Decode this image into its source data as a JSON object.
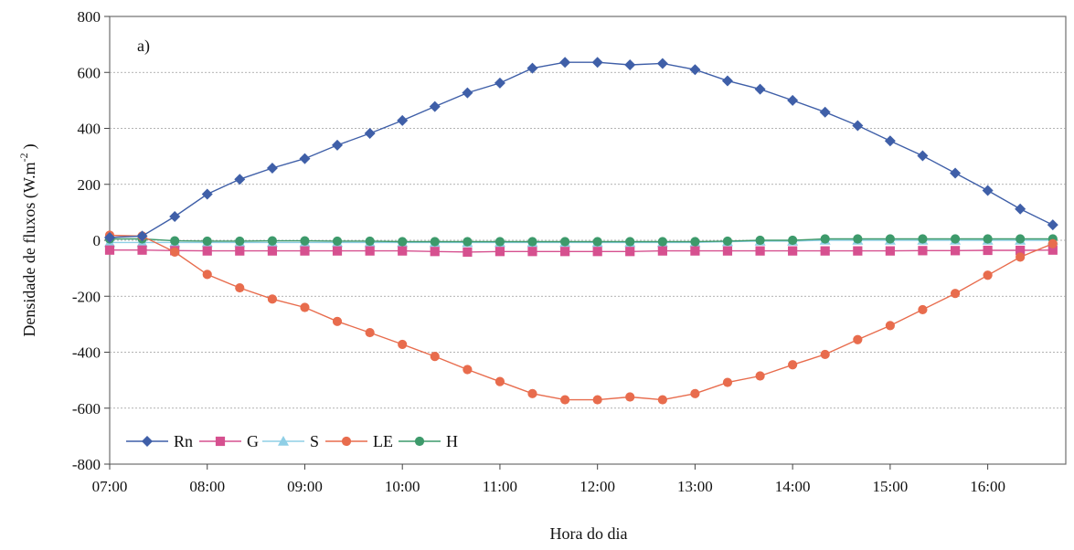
{
  "chart_data": {
    "type": "line",
    "panel_label": "a)",
    "xlabel": "Hora do dia",
    "ylabel": "Densidade de fluxos (W.m",
    "ylabel_sup": "-2",
    "ylabel_close": ")",
    "ylim": [
      -800,
      800
    ],
    "yticks": [
      800,
      600,
      400,
      200,
      0,
      -200,
      -400,
      -600,
      -800
    ],
    "xlim": [
      7.0,
      16.8
    ],
    "xticks": [
      {
        "v": 7,
        "label": "07:00"
      },
      {
        "v": 8,
        "label": "08:00"
      },
      {
        "v": 9,
        "label": "09:00"
      },
      {
        "v": 10,
        "label": "10:00"
      },
      {
        "v": 11,
        "label": "11:00"
      },
      {
        "v": 12,
        "label": "12:00"
      },
      {
        "v": 13,
        "label": "13:00"
      },
      {
        "v": 14,
        "label": "14:00"
      },
      {
        "v": 15,
        "label": "15:00"
      },
      {
        "v": 16,
        "label": "16:00"
      }
    ],
    "grid": "horizontal",
    "legend_position": "bottom-left",
    "x": [
      7.0,
      7.333,
      7.667,
      8.0,
      8.333,
      8.667,
      9.0,
      9.333,
      9.667,
      10.0,
      10.333,
      10.667,
      11.0,
      11.333,
      11.667,
      12.0,
      12.333,
      12.667,
      13.0,
      13.333,
      13.667,
      14.0,
      14.333,
      14.667,
      15.0,
      15.333,
      15.667,
      16.0,
      16.333,
      16.667
    ],
    "series": [
      {
        "name": "Rn",
        "color": "#3f5fa8",
        "marker": "diamond",
        "values": [
          10,
          15,
          85,
          165,
          218,
          258,
          292,
          340,
          382,
          428,
          478,
          527,
          562,
          615,
          636,
          636,
          627,
          632,
          610,
          570,
          540,
          500,
          458,
          410,
          355,
          302,
          240,
          178,
          112,
          55
        ]
      },
      {
        "name": "G",
        "color": "#d6508f",
        "marker": "square",
        "values": [
          -35,
          -35,
          -37,
          -38,
          -38,
          -38,
          -38,
          -38,
          -38,
          -38,
          -40,
          -42,
          -40,
          -40,
          -40,
          -40,
          -40,
          -38,
          -38,
          -38,
          -38,
          -38,
          -38,
          -38,
          -38,
          -37,
          -37,
          -36,
          -36,
          -35
        ]
      },
      {
        "name": "S",
        "color": "#8fcfe6",
        "marker": "triangle",
        "values": [
          -8,
          -8,
          -8,
          -8,
          -8,
          -8,
          -8,
          -8,
          -8,
          -8,
          -8,
          -8,
          -8,
          -8,
          -8,
          -8,
          -8,
          -8,
          -8,
          -5,
          -3,
          -3,
          0,
          0,
          0,
          0,
          0,
          0,
          0,
          0
        ]
      },
      {
        "name": "LE",
        "color": "#e86c4d",
        "marker": "circle",
        "values": [
          18,
          15,
          -42,
          -122,
          -170,
          -210,
          -240,
          -290,
          -330,
          -372,
          -415,
          -462,
          -505,
          -548,
          -570,
          -570,
          -560,
          -570,
          -548,
          -508,
          -485,
          -445,
          -408,
          -355,
          -305,
          -248,
          -190,
          -125,
          -60,
          -12
        ]
      },
      {
        "name": "H",
        "color": "#3d9a6b",
        "marker": "circle",
        "values": [
          5,
          5,
          -2,
          -3,
          -3,
          -2,
          -2,
          -3,
          -3,
          -5,
          -5,
          -5,
          -5,
          -5,
          -5,
          -5,
          -5,
          -5,
          -5,
          -3,
          0,
          0,
          5,
          5,
          5,
          5,
          5,
          5,
          5,
          5
        ]
      }
    ]
  }
}
